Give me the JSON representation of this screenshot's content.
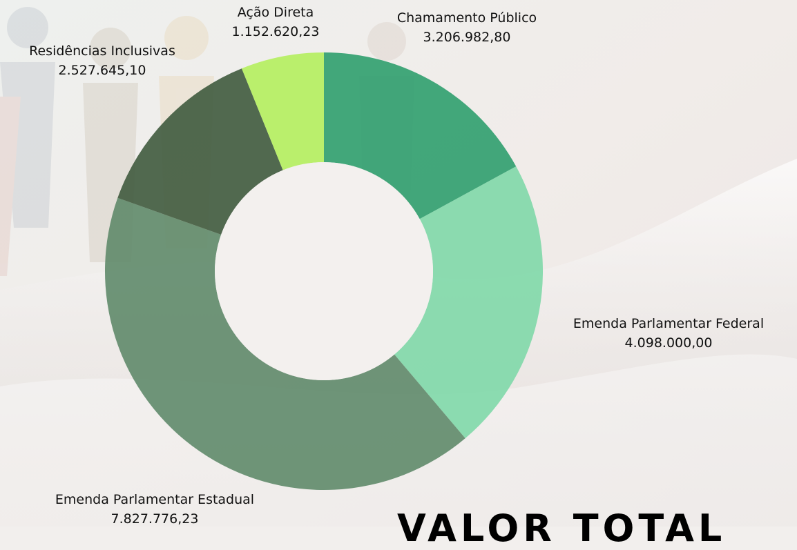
{
  "chart_data": {
    "type": "pie",
    "donut": true,
    "title": "",
    "categories": [
      "Chamamento Público",
      "Emenda Parlamentar Federal",
      "Emenda Parlamentar Estadual",
      "Residências Inclusivas",
      "Ação Direta"
    ],
    "values": [
      3206982.8,
      4098000.0,
      7827776.23,
      2527645.1,
      1152620.23
    ],
    "value_labels": [
      "3.206.982,80",
      "4.098.000,00",
      "7.827.776,23",
      "2.527.645,10",
      "1.152.620,23"
    ],
    "colors": [
      "#2f9e6e",
      "#7fd8a8",
      "#5f8a6a",
      "#3f5a3e",
      "#b4ee5e"
    ],
    "legend": "none"
  },
  "total_heading": "VALOR TOTAL"
}
